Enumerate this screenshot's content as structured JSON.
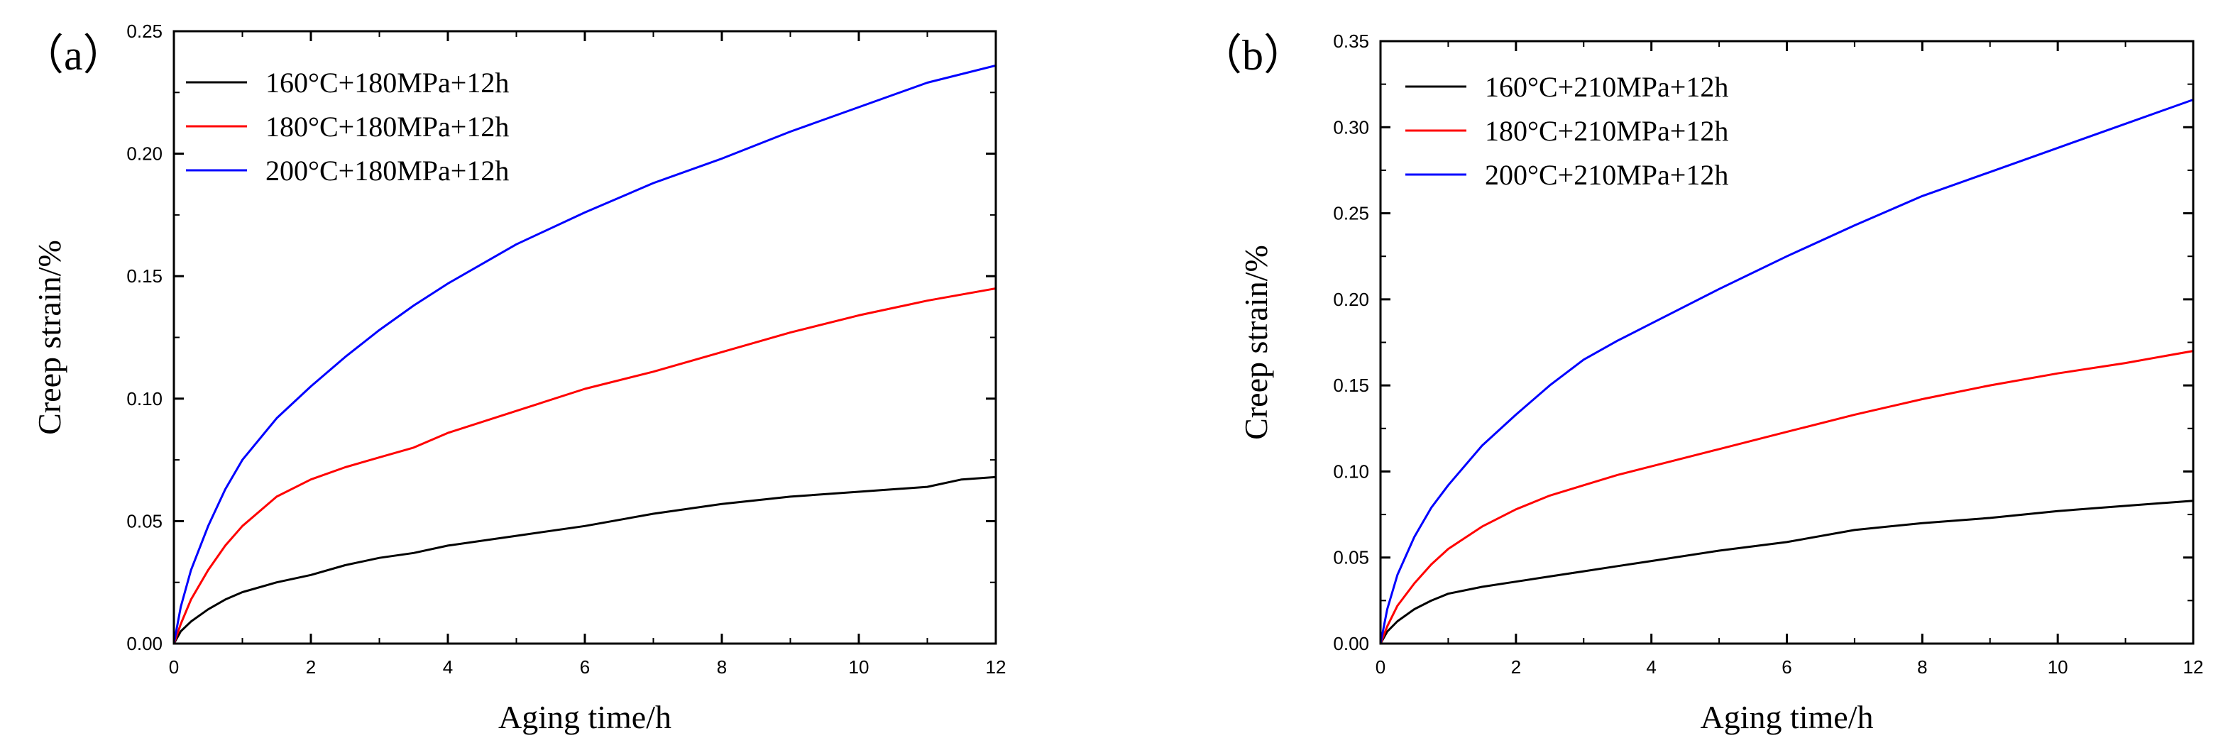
{
  "chart_data": [
    {
      "type": "line",
      "panel_label": "（a）",
      "xlabel": "Aging time/h",
      "ylabel": "Creep strain/%",
      "xlim": [
        0,
        12
      ],
      "ylim": [
        0,
        0.25
      ],
      "xticks": [
        0,
        2,
        4,
        6,
        8,
        10,
        12
      ],
      "xtick_labels": [
        "0",
        "2",
        "4",
        "6",
        "8",
        "10",
        "12"
      ],
      "yticks": [
        0,
        0.05,
        0.1,
        0.15,
        0.2,
        0.25
      ],
      "ytick_labels": [
        "0.00",
        "0.05",
        "0.10",
        "0.15",
        "0.20",
        "0.25"
      ],
      "legend_position": "top-left",
      "series": [
        {
          "name": "160°C+180MPa+12h",
          "color": "#000000",
          "x": [
            0,
            0.1,
            0.25,
            0.5,
            0.75,
            1,
            1.5,
            2,
            2.5,
            3,
            3.5,
            4,
            5,
            6,
            7,
            8,
            9,
            10,
            11,
            11.5,
            12
          ],
          "y": [
            0,
            0.005,
            0.009,
            0.014,
            0.018,
            0.021,
            0.025,
            0.028,
            0.032,
            0.035,
            0.037,
            0.04,
            0.044,
            0.048,
            0.053,
            0.057,
            0.06,
            0.062,
            0.064,
            0.067,
            0.068
          ]
        },
        {
          "name": "180°C+180MPa+12h",
          "color": "#ff0000",
          "x": [
            0,
            0.1,
            0.25,
            0.5,
            0.75,
            1,
            1.5,
            2,
            2.5,
            3,
            3.5,
            4,
            5,
            6,
            7,
            8,
            9,
            10,
            11,
            12
          ],
          "y": [
            0,
            0.008,
            0.018,
            0.03,
            0.04,
            0.048,
            0.06,
            0.067,
            0.072,
            0.076,
            0.08,
            0.086,
            0.095,
            0.104,
            0.111,
            0.119,
            0.127,
            0.134,
            0.14,
            0.145
          ]
        },
        {
          "name": "200°C+180MPa+12h",
          "color": "#0000ff",
          "x": [
            0,
            0.1,
            0.25,
            0.5,
            0.75,
            1,
            1.5,
            2,
            2.5,
            3,
            3.5,
            4,
            5,
            6,
            7,
            8,
            9,
            10,
            11,
            12
          ],
          "y": [
            0,
            0.015,
            0.03,
            0.048,
            0.063,
            0.075,
            0.092,
            0.105,
            0.117,
            0.128,
            0.138,
            0.147,
            0.163,
            0.176,
            0.188,
            0.198,
            0.209,
            0.219,
            0.229,
            0.236
          ]
        }
      ]
    },
    {
      "type": "line",
      "panel_label": "（b）",
      "xlabel": "Aging time/h",
      "ylabel": "Creep strain/%",
      "xlim": [
        0,
        12
      ],
      "ylim": [
        0,
        0.35
      ],
      "xticks": [
        0,
        2,
        4,
        6,
        8,
        10,
        12
      ],
      "xtick_labels": [
        "0",
        "2",
        "4",
        "6",
        "8",
        "10",
        "12"
      ],
      "yticks": [
        0,
        0.05,
        0.1,
        0.15,
        0.2,
        0.25,
        0.3,
        0.35
      ],
      "ytick_labels": [
        "0.00",
        "0.05",
        "0.10",
        "0.15",
        "0.20",
        "0.25",
        "0.30",
        "0.35"
      ],
      "legend_position": "top-left",
      "series": [
        {
          "name": "160°C+210MPa+12h",
          "color": "#000000",
          "x": [
            0,
            0.1,
            0.25,
            0.5,
            0.75,
            1,
            1.5,
            2,
            2.5,
            3,
            3.5,
            4,
            5,
            6,
            7,
            8,
            9,
            10,
            11,
            12
          ],
          "y": [
            0,
            0.007,
            0.013,
            0.02,
            0.025,
            0.029,
            0.033,
            0.036,
            0.039,
            0.042,
            0.045,
            0.048,
            0.054,
            0.059,
            0.066,
            0.07,
            0.073,
            0.077,
            0.08,
            0.083
          ]
        },
        {
          "name": "180°C+210MPa+12h",
          "color": "#ff0000",
          "x": [
            0,
            0.1,
            0.25,
            0.5,
            0.75,
            1,
            1.5,
            2,
            2.5,
            3,
            3.5,
            4,
            5,
            6,
            7,
            8,
            9,
            10,
            11,
            12
          ],
          "y": [
            0,
            0.01,
            0.022,
            0.035,
            0.046,
            0.055,
            0.068,
            0.078,
            0.086,
            0.092,
            0.098,
            0.103,
            0.113,
            0.123,
            0.133,
            0.142,
            0.15,
            0.157,
            0.163,
            0.17
          ]
        },
        {
          "name": "200°C+210MPa+12h",
          "color": "#0000ff",
          "x": [
            0,
            0.1,
            0.25,
            0.5,
            0.75,
            1,
            1.5,
            2,
            2.5,
            3,
            3.5,
            4,
            5,
            6,
            7,
            8,
            9,
            10,
            11,
            12
          ],
          "y": [
            0,
            0.02,
            0.04,
            0.062,
            0.079,
            0.092,
            0.115,
            0.133,
            0.15,
            0.165,
            0.176,
            0.186,
            0.206,
            0.225,
            0.243,
            0.26,
            0.274,
            0.288,
            0.302,
            0.316
          ]
        }
      ]
    }
  ]
}
